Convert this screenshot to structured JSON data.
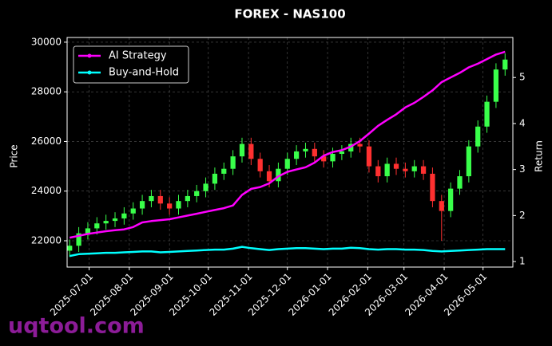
{
  "chart_data": {
    "type": "candlestick",
    "title": "FOREX - NAS100",
    "ylabel": "Price",
    "y2label": "Return",
    "watermark": "uqtool.com",
    "up_color": "#39ff4a",
    "down_color": "#ff3030",
    "grid": true,
    "legend": "upper left",
    "xlim": [
      "2025-06-14",
      "2026-05-24"
    ],
    "xticks": [
      "2025-07-01",
      "2025-08-01",
      "2025-09-01",
      "2025-10-01",
      "2025-11-01",
      "2025-12-01",
      "2026-01-01",
      "2026-02-01",
      "2026-03-01",
      "2026-04-01",
      "2026-05-01"
    ],
    "ylim": [
      20940,
      30190
    ],
    "yticks": [
      22000,
      24000,
      26000,
      28000,
      30000
    ],
    "y2lim": [
      0.88,
      5.87
    ],
    "y2ticks": [
      1,
      2,
      3,
      4,
      5
    ],
    "x": [
      "2025-06-16",
      "2025-06-23",
      "2025-06-30",
      "2025-07-07",
      "2025-07-14",
      "2025-07-21",
      "2025-07-28",
      "2025-08-04",
      "2025-08-11",
      "2025-08-18",
      "2025-08-25",
      "2025-09-01",
      "2025-09-08",
      "2025-09-15",
      "2025-09-22",
      "2025-09-29",
      "2025-10-06",
      "2025-10-13",
      "2025-10-20",
      "2025-10-27",
      "2025-11-03",
      "2025-11-10",
      "2025-11-17",
      "2025-11-24",
      "2025-12-01",
      "2025-12-08",
      "2025-12-15",
      "2025-12-22",
      "2025-12-29",
      "2026-01-05",
      "2026-01-12",
      "2026-01-19",
      "2026-01-26",
      "2026-02-02",
      "2026-02-09",
      "2026-02-16",
      "2026-02-23",
      "2026-03-02",
      "2026-03-09",
      "2026-03-16",
      "2026-03-23",
      "2026-03-30",
      "2026-04-06",
      "2026-04-13",
      "2026-04-20",
      "2026-04-27",
      "2026-05-04",
      "2026-05-11",
      "2026-05-18"
    ],
    "open": [
      21600,
      21800,
      22300,
      22500,
      22700,
      22800,
      22900,
      23100,
      23300,
      23600,
      23800,
      23500,
      23300,
      23600,
      23800,
      24000,
      24300,
      24700,
      24900,
      25400,
      25900,
      25300,
      24800,
      24400,
      24900,
      25300,
      25600,
      25700,
      25400,
      25200,
      25500,
      25600,
      25900,
      25800,
      25000,
      24600,
      25100,
      24900,
      24800,
      25000,
      24700,
      23600,
      23200,
      24100,
      24600,
      25800,
      26600,
      27600,
      28900
    ],
    "high": [
      22050,
      22550,
      22750,
      22950,
      23050,
      23150,
      23350,
      23550,
      23850,
      24050,
      24050,
      23750,
      23850,
      24050,
      24250,
      24550,
      24950,
      25150,
      25650,
      26150,
      26150,
      25550,
      25050,
      25150,
      25550,
      25850,
      25950,
      25950,
      25650,
      25750,
      25850,
      26150,
      26150,
      26050,
      25250,
      25350,
      25350,
      25150,
      25250,
      25250,
      24950,
      23850,
      24350,
      24850,
      26050,
      26850,
      27850,
      29150,
      29550
    ],
    "low": [
      21350,
      21550,
      22050,
      22250,
      22450,
      22550,
      22650,
      22850,
      23050,
      23350,
      23250,
      23050,
      23050,
      23350,
      23550,
      23750,
      24050,
      24450,
      24650,
      25150,
      25050,
      24550,
      24150,
      24150,
      24650,
      25050,
      25350,
      25150,
      24950,
      24950,
      25250,
      25350,
      25550,
      24750,
      24350,
      24350,
      24650,
      24550,
      24550,
      24450,
      23350,
      22000,
      22950,
      23850,
      24350,
      25550,
      26350,
      27350,
      28650
    ],
    "close": [
      21800,
      22300,
      22500,
      22700,
      22800,
      22900,
      23100,
      23300,
      23600,
      23800,
      23500,
      23300,
      23600,
      23800,
      24000,
      24300,
      24700,
      24900,
      25400,
      25900,
      25300,
      24800,
      24400,
      24900,
      25300,
      25600,
      25700,
      25400,
      25200,
      25500,
      25600,
      25900,
      25800,
      25000,
      24600,
      25100,
      24900,
      24800,
      25000,
      24700,
      23600,
      23200,
      24100,
      24600,
      25800,
      26600,
      27600,
      28900,
      29300
    ],
    "series": [
      {
        "name": "AI Strategy",
        "color": "#ff00ff",
        "axis": "y2",
        "values": [
          1.52,
          1.56,
          1.6,
          1.63,
          1.66,
          1.68,
          1.7,
          1.75,
          1.85,
          1.88,
          1.9,
          1.92,
          1.96,
          2.0,
          2.04,
          2.08,
          2.12,
          2.16,
          2.22,
          2.45,
          2.58,
          2.62,
          2.7,
          2.85,
          2.95,
          3.0,
          3.05,
          3.15,
          3.3,
          3.38,
          3.42,
          3.5,
          3.62,
          3.78,
          3.95,
          4.08,
          4.2,
          4.35,
          4.45,
          4.58,
          4.72,
          4.9,
          5.0,
          5.1,
          5.22,
          5.3,
          5.4,
          5.5,
          5.56
        ]
      },
      {
        "name": "Buy-and-Hold",
        "color": "#00ffff",
        "axis": "y2",
        "values": [
          1.12,
          1.16,
          1.17,
          1.18,
          1.19,
          1.19,
          1.2,
          1.21,
          1.22,
          1.22,
          1.2,
          1.21,
          1.22,
          1.23,
          1.24,
          1.25,
          1.26,
          1.26,
          1.28,
          1.32,
          1.29,
          1.27,
          1.25,
          1.27,
          1.28,
          1.29,
          1.29,
          1.28,
          1.27,
          1.28,
          1.28,
          1.3,
          1.29,
          1.27,
          1.26,
          1.27,
          1.27,
          1.26,
          1.26,
          1.25,
          1.23,
          1.22,
          1.23,
          1.24,
          1.25,
          1.26,
          1.27,
          1.27,
          1.27
        ]
      }
    ]
  }
}
